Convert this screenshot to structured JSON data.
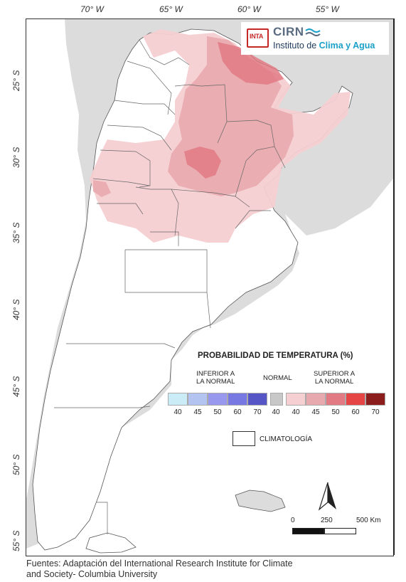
{
  "map": {
    "lon_ticks": [
      "70° W",
      "65° W",
      "60° W",
      "55° W"
    ],
    "lat_ticks": [
      "25° S",
      "30° S",
      "35° S",
      "40° S",
      "45° S",
      "50° S",
      "55° S"
    ]
  },
  "logo": {
    "inta": "INTA",
    "cirn": "CIRN",
    "institute_prefix": "Instituto de ",
    "institute_highlight": "Clima y Agua"
  },
  "legend": {
    "title": "PROBABILIDAD DE TEMPERATURA (%)",
    "below": {
      "label": "INFERIOR A\nLA NORMAL",
      "ticks": [
        "40",
        "45",
        "50",
        "60",
        "70"
      ],
      "colors": [
        "#c9ecf6",
        "#b2c4ef",
        "#9898ee",
        "#7878e2",
        "#5656c6"
      ]
    },
    "normal": {
      "label": "NORMAL",
      "tick": "40",
      "color": "#c8c8c8"
    },
    "above": {
      "label": "SUPERIOR A\nLA NORMAL",
      "ticks": [
        "40",
        "45",
        "50",
        "60",
        "70"
      ],
      "colors": [
        "#f6cfd2",
        "#e8a9ae",
        "#e27a84",
        "#e64545",
        "#8b1d1d"
      ]
    },
    "climatology": "CLIMATOLOGÍA"
  },
  "scale": {
    "labels": [
      "0",
      "250",
      "500 Km"
    ]
  },
  "footer": {
    "line1": "Fuentes: Adaptación del International Research Institute for Climate",
    "line2": "and Society- Columbia University"
  }
}
